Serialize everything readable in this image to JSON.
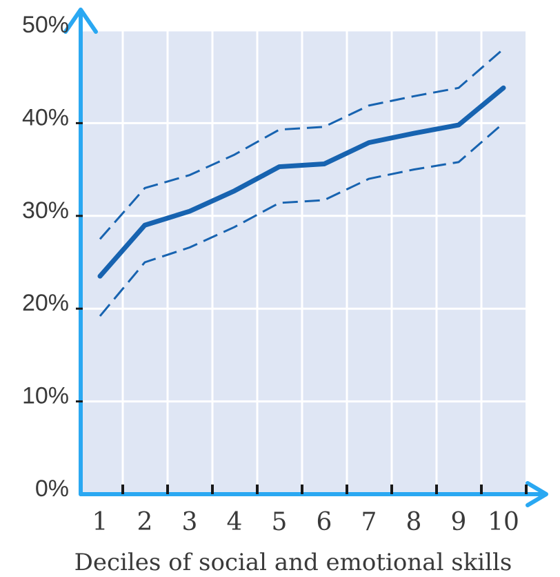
{
  "chart_data": {
    "type": "line",
    "title": "",
    "xlabel": "Deciles of social and emotional skills",
    "ylabel": "",
    "categories": [
      "1",
      "2",
      "3",
      "4",
      "5",
      "6",
      "7",
      "8",
      "9",
      "10"
    ],
    "yticks": [
      "0%",
      "10%",
      "20%",
      "30%",
      "40%",
      "50%"
    ],
    "ylim": [
      0,
      50
    ],
    "grid": true,
    "legend": "none",
    "series": [
      {
        "role": "estimate",
        "style": "solid",
        "values": [
          23.5,
          29.0,
          30.5,
          32.7,
          35.3,
          35.6,
          37.9,
          38.9,
          39.8,
          43.8
        ]
      },
      {
        "role": "upper-bound",
        "style": "dashed",
        "values": [
          27.5,
          33.0,
          34.4,
          36.6,
          39.3,
          39.6,
          41.9,
          42.9,
          43.8,
          48.0
        ]
      },
      {
        "role": "lower-bound",
        "style": "dashed",
        "values": [
          19.2,
          25.0,
          26.6,
          28.8,
          31.4,
          31.7,
          34.0,
          35.0,
          35.8,
          40.0
        ]
      }
    ],
    "colors": {
      "plot_bg": "#dfe6f4",
      "grid": "#ffffff",
      "line": "#1763b0",
      "axis": "#2aa8f2",
      "tick": "#1a1a1a",
      "text": "#3a3a3a"
    }
  }
}
